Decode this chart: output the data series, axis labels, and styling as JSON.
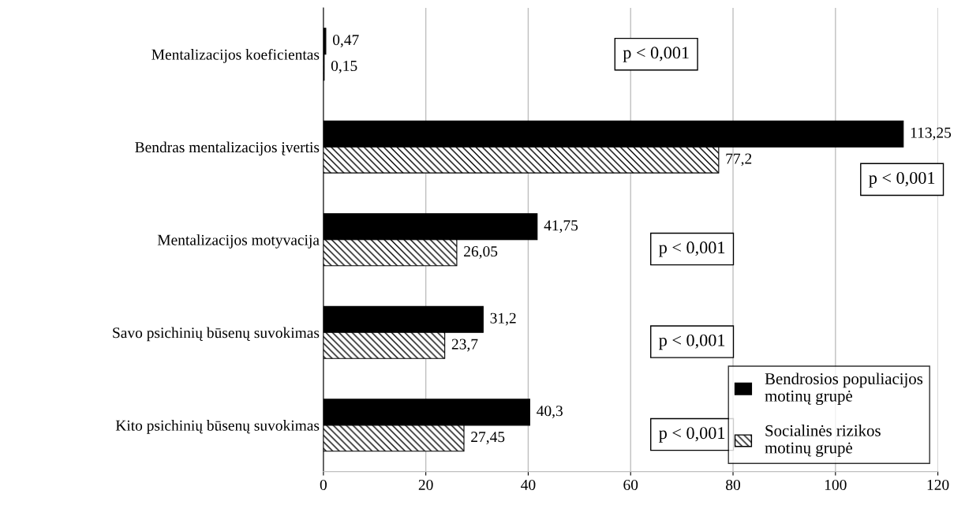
{
  "chart_data": {
    "type": "bar",
    "orientation": "horizontal",
    "categories": [
      "Mentalizacijos koeficientas",
      "Bendras mentalizacijos įvertis",
      "Mentalizacijos motyvacija",
      "Savo psichinių būsenų suvokimas",
      "Kito psichinių būsenų suvokimas"
    ],
    "series": [
      {
        "name": "Bendrosios populiacijos motinų grupė",
        "color": "#000000",
        "values": [
          0.47,
          113.25,
          41.75,
          31.2,
          40.3
        ],
        "value_labels": [
          "0,47",
          "113,25",
          "41,75",
          "31,2",
          "40,3"
        ]
      },
      {
        "name": "Socialinės rizikos motinų grupė",
        "color": "#000000",
        "values": [
          0.15,
          77.2,
          26.05,
          23.7,
          27.45
        ],
        "value_labels": [
          "0,15",
          "77,2",
          "26,05",
          "23,7",
          "27,45"
        ]
      }
    ],
    "xlim": [
      0,
      120
    ],
    "xticks": [
      0,
      20,
      40,
      60,
      80,
      100,
      120
    ],
    "grid": "x",
    "legend": "bottom right",
    "annotations": [
      "p < 0,001",
      "p < 0,001",
      "p < 0,001",
      "p < 0,001",
      "p < 0,001"
    ]
  }
}
